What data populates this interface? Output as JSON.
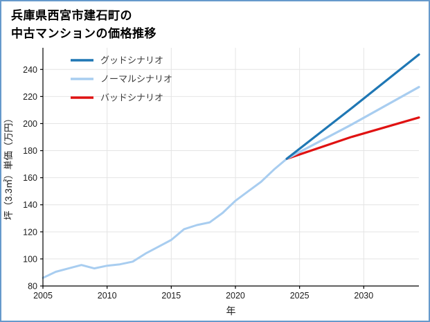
{
  "page": {
    "border_color": "#6699cc",
    "background": "#ffffff"
  },
  "title": {
    "line1": "兵庫県西宮市建石町の",
    "line2": "中古マンションの価格推移"
  },
  "chart_data": {
    "type": "line",
    "title": "兵庫県西宮市建石町の中古マンションの価格推移",
    "xlabel": "年",
    "ylabel": "坪（3.3㎡）単価（万円）",
    "xlim": [
      2005,
      2034.3
    ],
    "ylim": [
      80,
      256
    ],
    "xticks": [
      2005,
      2010,
      2015,
      2020,
      2025,
      2030
    ],
    "yticks": [
      80,
      100,
      120,
      140,
      160,
      180,
      200,
      220,
      240
    ],
    "grid": true,
    "grid_color": "#e4e4e4",
    "axis_color": "#000000",
    "tick_color": "#1a1a1a",
    "legend_text_color": "#3a3a3a",
    "legend_position": "top-left",
    "legend": [
      {
        "label": "グッドシナリオ",
        "color": "#1f77b4"
      },
      {
        "label": "ノーマルシナリオ",
        "color": "#a8cdf0"
      },
      {
        "label": "バッドシナリオ",
        "color": "#e01212"
      }
    ],
    "series": [
      {
        "id": "history",
        "color": "#a8cdf0",
        "width": 3,
        "x": [
          2005,
          2006,
          2007,
          2008,
          2009,
          2010,
          2011,
          2012,
          2013,
          2014,
          2015,
          2016,
          2017,
          2018,
          2019,
          2020,
          2021,
          2022,
          2023,
          2024
        ],
        "y": [
          86,
          90.5,
          93,
          95.5,
          93,
          95,
          96,
          98,
          104,
          109,
          114,
          122,
          125,
          127,
          134,
          143,
          150,
          157,
          166,
          174
        ]
      },
      {
        "id": "bad-scenario",
        "color": "#e01212",
        "width": 3.2,
        "x": [
          2024,
          2029,
          2034.3
        ],
        "y": [
          174,
          190,
          204.5
        ]
      },
      {
        "id": "normal-scenario",
        "color": "#a8cdf0",
        "width": 3.2,
        "x": [
          2024,
          2029,
          2034.3
        ],
        "y": [
          174,
          199,
          227
        ]
      },
      {
        "id": "good-scenario",
        "color": "#1f77b4",
        "width": 3.2,
        "x": [
          2024,
          2029,
          2034.3
        ],
        "y": [
          174,
          211,
          251
        ]
      }
    ]
  }
}
